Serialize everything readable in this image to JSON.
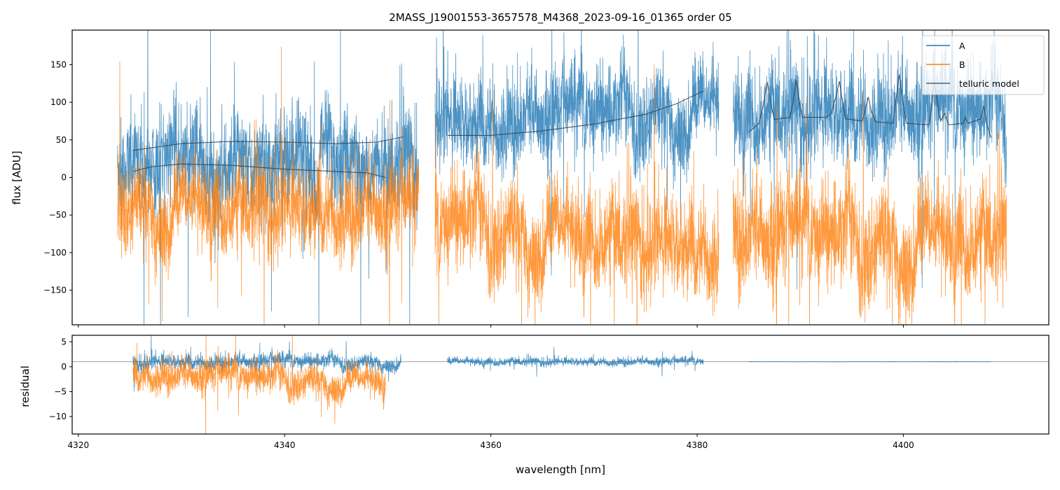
{
  "chart_data": {
    "type": "line",
    "title": "2MASS_J19001553-3657578_M4368_2023-09-16_01365  order 05",
    "xlabel": "wavelength [nm]",
    "panels": [
      {
        "name": "spectrum",
        "ylabel": "flux [ADU]",
        "xlim": [
          4319.4,
          4414.1
        ],
        "ylim": [
          -196,
          196
        ],
        "xticks": [
          4320,
          4340,
          4360,
          4380,
          4400
        ],
        "yticks": [
          -150,
          -100,
          -50,
          0,
          50,
          100,
          150
        ],
        "legend": {
          "placement": "top-right",
          "entries": [
            "A",
            "B",
            "telluric model"
          ]
        },
        "series": [
          {
            "name": "A",
            "color": "#1f77b4",
            "kind": "noisy",
            "segments": [
              {
                "x": [
                  4323.8,
                  4353.0
                ],
                "mean": [
                  15,
                  25
                ],
                "spread": 55
              },
              {
                "x": [
                  4354.6,
                  4382.1
                ],
                "mean": [
                  70,
                  95
                ],
                "spread": 50
              },
              {
                "x": [
                  4383.5,
                  4410.0
                ],
                "mean": [
                  85,
                  85
                ],
                "spread": 55
              }
            ]
          },
          {
            "name": "B",
            "color": "#ff7f0e",
            "kind": "noisy",
            "segments": [
              {
                "x": [
                  4323.8,
                  4353.0
                ],
                "mean": [
                  -35,
                  -45
                ],
                "spread": 50
              },
              {
                "x": [
                  4354.6,
                  4382.1
                ],
                "mean": [
                  -55,
                  -95
                ],
                "spread": 55
              },
              {
                "x": [
                  4383.5,
                  4410.0
                ],
                "mean": [
                  -80,
                  -80
                ],
                "spread": 60
              }
            ]
          },
          {
            "name": "telluric model",
            "color": "#2f3f4f",
            "kind": "curves",
            "curves": [
              [
                [
                  4325.3,
                  36
                ],
                [
                  4330,
                  45
                ],
                [
                  4335,
                  48
                ],
                [
                  4340,
                  47
                ],
                [
                  4345,
                  45
                ],
                [
                  4349,
                  47
                ],
                [
                  4351.5,
                  54
                ]
              ],
              [
                [
                  4325.3,
                  8
                ],
                [
                  4327,
                  14
                ],
                [
                  4330,
                  18
                ],
                [
                  4335,
                  16
                ],
                [
                  4340,
                  11
                ],
                [
                  4345,
                  8
                ],
                [
                  4348,
                  6
                ],
                [
                  4349.8,
                  0
                ]
              ],
              [
                [
                  4355.8,
                  56
                ],
                [
                  4360,
                  56
                ],
                [
                  4365,
                  62
                ],
                [
                  4370,
                  71
                ],
                [
                  4375,
                  84
                ],
                [
                  4378,
                  98
                ],
                [
                  4380.6,
                  115
                ]
              ],
              [
                [
                  4385,
                  60
                ],
                [
                  4386,
                  72
                ],
                [
                  4386.4,
                  95
                ],
                [
                  4386.8,
                  127
                ],
                [
                  4387.2,
                  95
                ],
                [
                  4387.5,
                  77
                ],
                [
                  4389,
                  80
                ],
                [
                  4389.3,
                  100
                ],
                [
                  4389.6,
                  130
                ],
                [
                  4389.9,
                  100
                ],
                [
                  4390.2,
                  80
                ],
                [
                  4392.5,
                  80
                ],
                [
                  4393,
                  85
                ],
                [
                  4393.5,
                  110
                ],
                [
                  4393.8,
                  128
                ],
                [
                  4394.1,
                  100
                ],
                [
                  4394.4,
                  78
                ],
                [
                  4396,
                  75
                ],
                [
                  4396.3,
                  90
                ],
                [
                  4396.6,
                  107
                ],
                [
                  4396.9,
                  88
                ],
                [
                  4397.3,
                  74
                ],
                [
                  4399,
                  72
                ],
                [
                  4399.3,
                  105
                ],
                [
                  4399.6,
                  137
                ],
                [
                  4399.9,
                  105
                ],
                [
                  4400.3,
                  72
                ],
                [
                  4402.5,
                  70
                ],
                [
                  4402.8,
                  100
                ],
                [
                  4403,
                  130
                ],
                [
                  4403.3,
                  100
                ],
                [
                  4403.6,
                  75
                ],
                [
                  4404,
                  85
                ],
                [
                  4404.4,
                  70
                ],
                [
                  4405.8,
                  72
                ],
                [
                  4406,
                  80
                ],
                [
                  4406.3,
                  72
                ],
                [
                  4407.5,
                  78
                ],
                [
                  4407.8,
                  95
                ],
                [
                  4408.1,
                  70
                ],
                [
                  4408.5,
                  53
                ]
              ]
            ]
          }
        ]
      },
      {
        "name": "residual",
        "ylabel": "residual",
        "xlim": [
          4319.4,
          4414.1
        ],
        "ylim": [
          -13.5,
          6.3
        ],
        "xticks": [
          4320,
          4340,
          4360,
          4380,
          4400
        ],
        "xticklabels": [
          "4320",
          "4340",
          "4360",
          "4380",
          "4400"
        ],
        "yticks": [
          -10,
          -5,
          0,
          5
        ],
        "hline": 1,
        "series": [
          {
            "name": "A",
            "color": "#1f77b4",
            "segments": [
              {
                "x": [
                  4325.3,
                  4351.3
                ],
                "mean": [
                  1,
                  1
                ],
                "spread": 1.3
              },
              {
                "x": [
                  4355.8,
                  4380.6
                ],
                "mean": [
                  1,
                  1
                ],
                "spread": 0.7
              },
              {
                "x": [
                  4385.0,
                  4408.5
                ],
                "mean": [
                  1,
                  1
                ],
                "spread": 0.02
              }
            ]
          },
          {
            "name": "B",
            "color": "#ff7f0e",
            "segments": [
              {
                "x": [
                  4325.3,
                  4349.8
                ],
                "mean": [
                  -1.5,
                  -3
                ],
                "spread": 2.8
              }
            ]
          }
        ]
      }
    ]
  }
}
